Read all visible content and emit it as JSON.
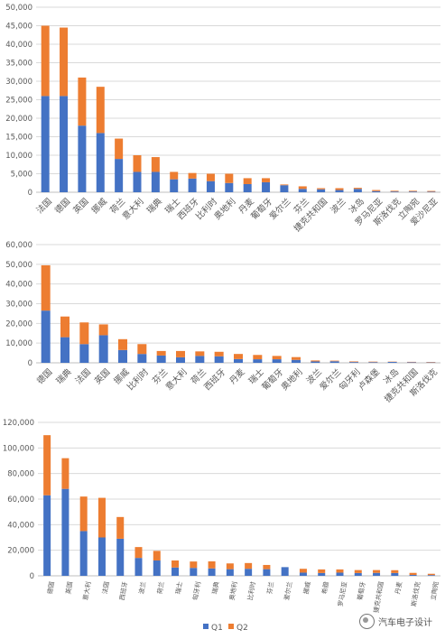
{
  "colors": {
    "q1": "#4472c4",
    "q2": "#ed7d31",
    "grid": "#d9d9d9",
    "text": "#595959"
  },
  "legend": {
    "q1_label": "Q1",
    "q2_label": "Q2"
  },
  "watermark": {
    "text": "汽车电子设计"
  },
  "chart_data": [
    {
      "type": "bar",
      "stacked": true,
      "categories": [
        "法国",
        "德国",
        "英国",
        "挪威",
        "荷兰",
        "意大利",
        "瑞典",
        "瑞士",
        "西班牙",
        "比利时",
        "奥地利",
        "丹麦",
        "葡萄牙",
        "爱尔兰",
        "芬兰",
        "捷克共和国",
        "波兰",
        "冰岛",
        "罗马尼亚",
        "斯洛伐克",
        "立陶宛",
        "爱沙尼亚"
      ],
      "series": [
        {
          "name": "Q1",
          "values": [
            26000,
            26000,
            18000,
            16000,
            9000,
            5500,
            5500,
            3500,
            3700,
            3000,
            2500,
            2200,
            2700,
            1900,
            900,
            800,
            600,
            900,
            300,
            200,
            200,
            150
          ]
        },
        {
          "name": "Q2",
          "values": [
            19000,
            18500,
            13000,
            12500,
            5500,
            4500,
            4000,
            2000,
            1500,
            2000,
            2500,
            1600,
            1100,
            200,
            700,
            300,
            500,
            300,
            300,
            200,
            200,
            200
          ]
        }
      ],
      "ylim": [
        0,
        50000
      ],
      "yticks": [
        "0",
        "5,000",
        "10,000",
        "15,000",
        "20,000",
        "25,000",
        "30,000",
        "35,000",
        "40,000",
        "45,000",
        "50,000"
      ],
      "grid": true
    },
    {
      "type": "bar",
      "stacked": true,
      "categories": [
        "德国",
        "瑞典",
        "法国",
        "英国",
        "挪威",
        "比利时",
        "芬兰",
        "意大利",
        "荷兰",
        "西班牙",
        "丹麦",
        "瑞士",
        "葡萄牙",
        "奥地利",
        "波兰",
        "爱尔兰",
        "匈牙利",
        "卢森堡",
        "冰岛",
        "捷克共和国",
        "斯洛伐克"
      ],
      "series": [
        {
          "name": "Q1",
          "values": [
            26500,
            13000,
            9500,
            14000,
            6500,
            4500,
            3700,
            2800,
            3500,
            3300,
            1900,
            1800,
            1800,
            1500,
            700,
            800,
            400,
            350,
            450,
            300,
            200
          ]
        },
        {
          "name": "Q2",
          "values": [
            23000,
            10500,
            11000,
            5500,
            5500,
            5000,
            2300,
            3200,
            2300,
            2300,
            2600,
            2200,
            1700,
            1400,
            500,
            300,
            300,
            250,
            150,
            200,
            200
          ]
        }
      ],
      "ylim": [
        0,
        60000
      ],
      "yticks": [
        "0",
        "10,000",
        "20,000",
        "30,000",
        "40,000",
        "50,000",
        "60,000"
      ],
      "grid": true
    },
    {
      "type": "bar",
      "stacked": true,
      "categories": [
        "德国",
        "英国",
        "意大利",
        "法国",
        "西班牙",
        "波兰",
        "荷兰",
        "瑞士",
        "匈牙利",
        "瑞典",
        "奥地利",
        "比利时",
        "芬兰",
        "爱尔兰",
        "挪威",
        "希腊",
        "罗马尼亚",
        "葡萄牙",
        "捷克共和国",
        "丹麦",
        "斯洛伐克",
        "立陶宛"
      ],
      "series": [
        {
          "name": "Q1",
          "values": [
            63000,
            68000,
            35000,
            30000,
            29000,
            14000,
            12000,
            6500,
            6200,
            5800,
            5200,
            5500,
            5200,
            6800,
            2500,
            2200,
            2500,
            2200,
            2300,
            2200,
            700,
            600
          ]
        },
        {
          "name": "Q2",
          "values": [
            47000,
            24000,
            27000,
            31000,
            17000,
            8500,
            7500,
            5500,
            5000,
            5500,
            4500,
            4500,
            3300,
            0,
            3000,
            2800,
            2500,
            2300,
            2200,
            2200,
            1600,
            1000
          ]
        }
      ],
      "ylim": [
        0,
        120000
      ],
      "yticks": [
        "0",
        "20,000",
        "40,000",
        "60,000",
        "80,000",
        "100,000",
        "120,000"
      ],
      "grid": true
    }
  ]
}
